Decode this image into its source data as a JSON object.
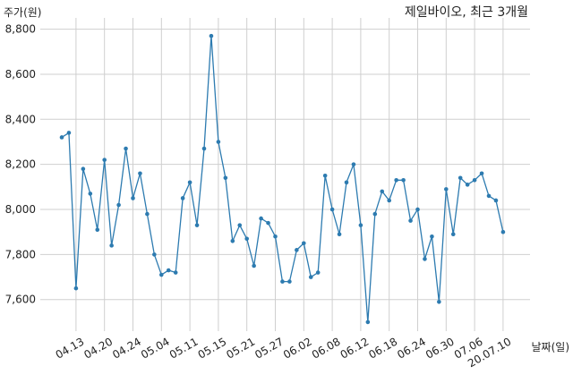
{
  "chart_data": {
    "type": "line",
    "title": "제일바이오, 최근 3개월",
    "y_label": "주가(원)",
    "x_label": "날짜(일)",
    "categories": [
      null,
      null,
      "04.13",
      null,
      null,
      null,
      "04.20",
      null,
      null,
      null,
      "04.24",
      null,
      null,
      null,
      "05.04",
      null,
      null,
      null,
      "05.11",
      null,
      null,
      null,
      "05.15",
      null,
      null,
      null,
      "05.21",
      null,
      null,
      null,
      "05.27",
      null,
      null,
      null,
      "06.02",
      null,
      null,
      null,
      "06.08",
      null,
      null,
      null,
      "06.12",
      null,
      null,
      null,
      "06.18",
      null,
      null,
      null,
      "06.24",
      null,
      null,
      null,
      "06.30",
      null,
      null,
      null,
      "07.06",
      null,
      null,
      null,
      "20.07.10"
    ],
    "series": [
      {
        "color": "#2d7bb0",
        "values": [
          8320,
          8340,
          7650,
          8180,
          8070,
          7910,
          8220,
          7840,
          8020,
          8270,
          8050,
          8160,
          7980,
          7800,
          7710,
          7730,
          7720,
          8050,
          8120,
          7930,
          8270,
          8770,
          8300,
          8140,
          7860,
          7930,
          7870,
          7750,
          7960,
          7940,
          7880,
          7680,
          7680,
          7820,
          7850,
          7700,
          7720,
          8150,
          8000,
          7890,
          8120,
          8200,
          7930,
          7500,
          7980,
          8080,
          8040,
          8130,
          8130,
          7950,
          8000,
          7780,
          7880,
          7590,
          8090,
          7890,
          8140,
          8110,
          8130,
          8160,
          8060,
          8040,
          7900
        ]
      }
    ],
    "ylim": [
      7460,
      8850
    ],
    "yticks": [
      {
        "value": 7600,
        "label": "7,600"
      },
      {
        "value": 7800,
        "label": "7,800"
      },
      {
        "value": 8000,
        "label": "8,000"
      },
      {
        "value": 8200,
        "label": "8,200"
      },
      {
        "value": 8400,
        "label": "8,400"
      },
      {
        "value": 8600,
        "label": "8,600"
      },
      {
        "value": 8800,
        "label": "8,800"
      }
    ],
    "grid": true
  }
}
